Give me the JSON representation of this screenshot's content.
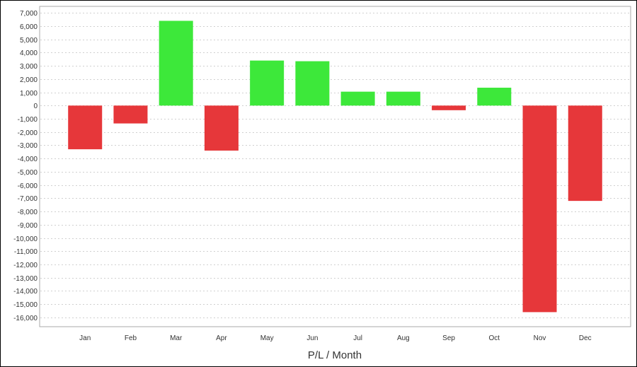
{
  "chart_data": {
    "type": "bar",
    "title": "",
    "xlabel": "P/L / Month",
    "ylabel": "",
    "categories": [
      "Jan",
      "Feb",
      "Mar",
      "Apr",
      "May",
      "Jun",
      "Jul",
      "Aug",
      "Sep",
      "Oct",
      "Nov",
      "Dec"
    ],
    "values": [
      -3300,
      -1350,
      6400,
      -3400,
      3400,
      3350,
      1050,
      1050,
      -350,
      1350,
      -15600,
      -7200
    ],
    "ylim": [
      -16600,
      7500
    ],
    "yticks": [
      7000,
      6000,
      5000,
      4000,
      3000,
      2000,
      1000,
      0,
      -1000,
      -2000,
      -3000,
      -4000,
      -5000,
      -6000,
      -7000,
      -8000,
      -9000,
      -10000,
      -11000,
      -12000,
      -13000,
      -14000,
      -15000,
      -16000
    ],
    "grid": true,
    "legend": "none",
    "colors": {
      "positive": "#3de83a",
      "negative": "#e6373a",
      "grid": "#d0d0d0",
      "axis_border": "#aaaaaa"
    }
  }
}
